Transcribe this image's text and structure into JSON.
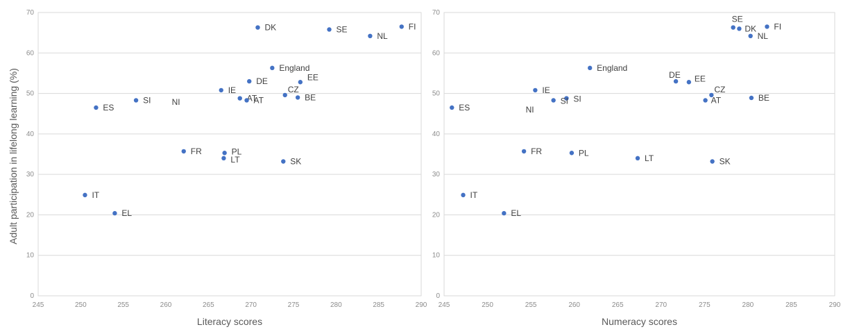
{
  "ylabel": "Adult participation in lifelong learning (%)",
  "chart_data": [
    {
      "type": "scatter",
      "xlabel": "Literacy scores",
      "ylabel": "Adult participation in lifelong learning (%)",
      "xlim": [
        245,
        290
      ],
      "ylim": [
        0,
        70
      ],
      "x_ticks": [
        245,
        250,
        255,
        260,
        265,
        270,
        275,
        280,
        285,
        290
      ],
      "y_ticks": [
        0,
        10,
        20,
        30,
        40,
        50,
        60,
        70
      ],
      "grid": "horizontal",
      "color": "#4472c4",
      "points": [
        {
          "label": "DK",
          "x": 270.8,
          "y": 66.3
        },
        {
          "label": "SE",
          "x": 279.2,
          "y": 65.8
        },
        {
          "label": "FI",
          "x": 287.7,
          "y": 66.5
        },
        {
          "label": "NL",
          "x": 284.0,
          "y": 64.2
        },
        {
          "label": "England",
          "x": 272.5,
          "y": 56.3
        },
        {
          "label": "DE",
          "x": 269.8,
          "y": 53.0
        },
        {
          "label": "EE",
          "x": 275.8,
          "y": 52.8
        },
        {
          "label": "IE",
          "x": 266.5,
          "y": 50.8
        },
        {
          "label": "CZ",
          "x": 274.0,
          "y": 49.6
        },
        {
          "label": "AT",
          "x": 268.7,
          "y": 48.8
        },
        {
          "label": "AT",
          "x": 269.5,
          "y": 48.3
        },
        {
          "label": "BE",
          "x": 275.5,
          "y": 49.0
        },
        {
          "label": "SI",
          "x": 256.5,
          "y": 48.3
        },
        {
          "label": "ES",
          "x": 251.8,
          "y": 46.5
        },
        {
          "label": "FR",
          "x": 262.1,
          "y": 35.7
        },
        {
          "label": "PL",
          "x": 266.9,
          "y": 35.3
        },
        {
          "label": "LT",
          "x": 266.8,
          "y": 34.0
        },
        {
          "label": "SK",
          "x": 273.8,
          "y": 33.2
        },
        {
          "label": "IT",
          "x": 250.5,
          "y": 24.9
        },
        {
          "label": "EL",
          "x": 254.0,
          "y": 20.4
        }
      ],
      "annotations": [
        {
          "text": "NI",
          "x": 260.7,
          "y": 47.9
        }
      ]
    },
    {
      "type": "scatter",
      "xlabel": "Numeracy scores",
      "ylabel": "",
      "xlim": [
        245,
        290
      ],
      "ylim": [
        0,
        70
      ],
      "x_ticks": [
        245,
        250,
        255,
        260,
        265,
        270,
        275,
        280,
        285,
        290
      ],
      "y_ticks": [
        0,
        10,
        20,
        30,
        40,
        50,
        60,
        70
      ],
      "grid": "horizontal",
      "color": "#4472c4",
      "points": [
        {
          "label": "SE",
          "x": 278.3,
          "y": 66.3
        },
        {
          "label": "DK",
          "x": 279.0,
          "y": 66.0
        },
        {
          "label": "FI",
          "x": 282.2,
          "y": 66.5
        },
        {
          "label": "NL",
          "x": 280.3,
          "y": 64.2
        },
        {
          "label": "England",
          "x": 261.8,
          "y": 56.3
        },
        {
          "label": "DE",
          "x": 271.7,
          "y": 53.0
        },
        {
          "label": "EE",
          "x": 273.2,
          "y": 52.8
        },
        {
          "label": "IE",
          "x": 255.5,
          "y": 50.8
        },
        {
          "label": "CZ",
          "x": 275.8,
          "y": 49.6
        },
        {
          "label": "AT",
          "x": 275.1,
          "y": 48.3
        },
        {
          "label": "SI",
          "x": 259.1,
          "y": 48.8
        },
        {
          "label": "SI",
          "x": 257.6,
          "y": 48.3
        },
        {
          "label": "BE",
          "x": 280.4,
          "y": 48.9
        },
        {
          "label": "ES",
          "x": 245.9,
          "y": 46.5
        },
        {
          "label": "FR",
          "x": 254.2,
          "y": 35.7
        },
        {
          "label": "PL",
          "x": 259.7,
          "y": 35.3
        },
        {
          "label": "LT",
          "x": 267.3,
          "y": 34.0
        },
        {
          "label": "SK",
          "x": 275.9,
          "y": 33.2
        },
        {
          "label": "IT",
          "x": 247.2,
          "y": 24.9
        },
        {
          "label": "EL",
          "x": 251.9,
          "y": 20.4
        }
      ],
      "annotations": [
        {
          "text": "NI",
          "x": 254.4,
          "y": 46.0
        }
      ]
    }
  ]
}
